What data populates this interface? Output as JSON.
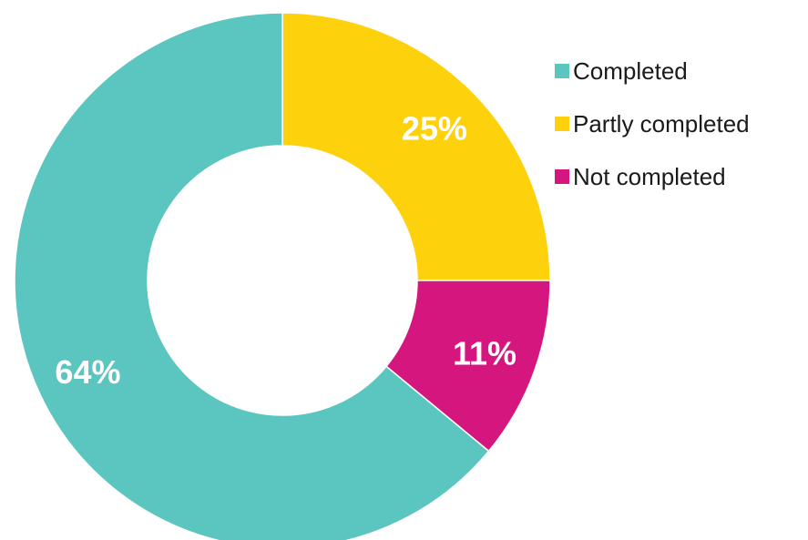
{
  "chart_data": {
    "type": "pie",
    "variant": "donut",
    "title": "",
    "categories": [
      "Completed",
      "Partly completed",
      "Not completed"
    ],
    "values": [
      64,
      25,
      11
    ],
    "unit": "%",
    "data_labels": [
      "64%",
      "25%",
      "11%"
    ],
    "colors": [
      "#5bc5bf",
      "#fdd10b",
      "#d4167e"
    ],
    "start_order": [
      "Partly completed",
      "Not completed",
      "Completed"
    ],
    "direction": "clockwise from 12 o'clock",
    "legend_position": "right",
    "legend": [
      {
        "label": "Completed",
        "color": "#5bc5bf"
      },
      {
        "label": "Partly completed",
        "color": "#fdd10b"
      },
      {
        "label": "Not completed",
        "color": "#d4167e"
      }
    ]
  }
}
